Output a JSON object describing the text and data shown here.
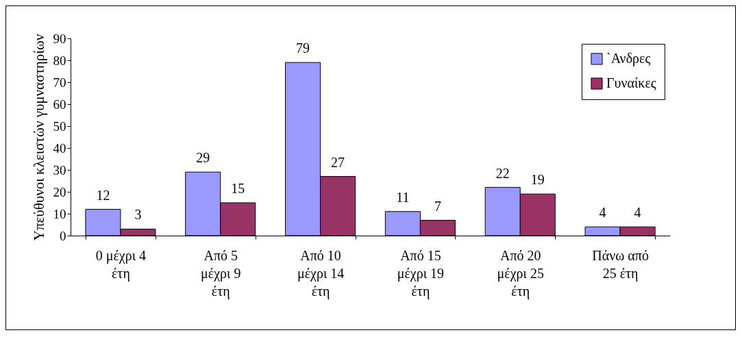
{
  "chart_data": {
    "type": "bar",
    "ylabel": "Υπεύθυνοι κλειστών γυμναστηρίων",
    "categories": [
      "0 μέχρι 4 έτη",
      "Από 5 μέχρι 9 έτη",
      "Από 10 μέχρι 14 έτη",
      "Από 15 μέχρι 19 έτη",
      "Από 20 μέχρι 25 έτη",
      "Πάνω από 25 έτη"
    ],
    "series": [
      {
        "name": "`Ανδρες",
        "color": "#9999ff",
        "values": [
          12,
          29,
          79,
          11,
          22,
          4
        ]
      },
      {
        "name": "Γυναίκες",
        "color": "#993366",
        "values": [
          3,
          15,
          27,
          7,
          19,
          4
        ]
      }
    ],
    "ylim": [
      0,
      90
    ],
    "yticks": [
      0,
      10,
      20,
      30,
      40,
      50,
      60,
      70,
      80,
      90
    ],
    "data_labels": true,
    "legend": "top right"
  }
}
